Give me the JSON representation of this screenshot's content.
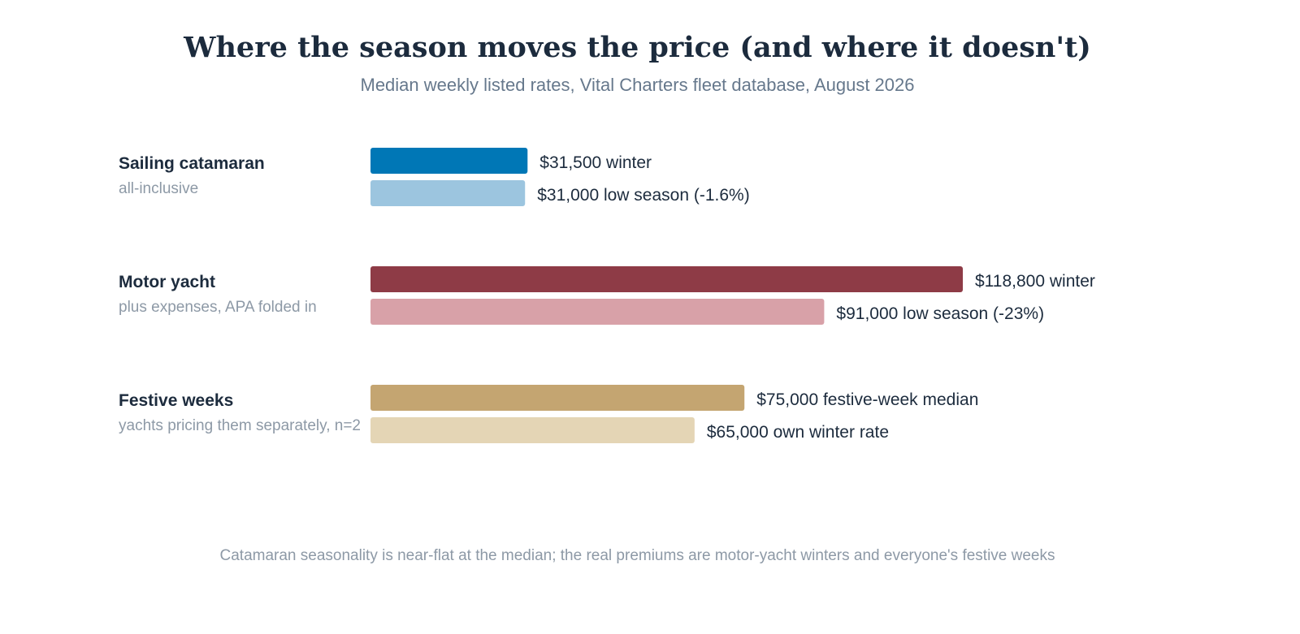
{
  "chart_data": {
    "type": "bar",
    "orientation": "horizontal",
    "title": "Where the season moves the price (and where it doesn't)",
    "subtitle": "Median weekly listed rates, Vital Charters fleet database, August 2026",
    "footnote": "Catamaran seasonality is near-flat at the median; the real premiums are motor-yacht winters and everyone's festive weeks",
    "xlim": [
      0,
      130000
    ],
    "grid": false,
    "groups": [
      {
        "label": "Sailing catamaran",
        "sublabel": "all-inclusive",
        "bars": [
          {
            "value": 31500,
            "label": "$31,500 winter",
            "color": "#0077b6"
          },
          {
            "value": 31000,
            "label": "$31,000 low season (-1.6%)",
            "color": "#9cc5df"
          }
        ]
      },
      {
        "label": "Motor yacht",
        "sublabel": "plus expenses, APA folded in",
        "bars": [
          {
            "value": 118800,
            "label": "$118,800 winter",
            "color": "#8e3b46"
          },
          {
            "value": 91000,
            "label": "$91,000 low season (-23%)",
            "color": "#d8a1a8"
          }
        ]
      },
      {
        "label": "Festive weeks",
        "sublabel": "yachts pricing them separately, n=2",
        "bars": [
          {
            "value": 75000,
            "label": "$75,000 festive-week median",
            "color": "#c4a571"
          },
          {
            "value": 65000,
            "label": "$65,000 own winter rate",
            "color": "#e4d5b5"
          }
        ]
      }
    ]
  }
}
